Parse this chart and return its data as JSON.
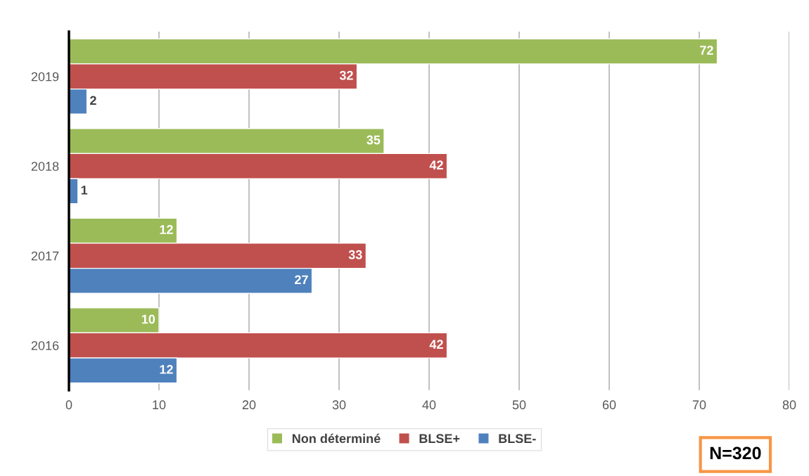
{
  "chart_data": {
    "type": "bar",
    "orientation": "horizontal",
    "categories": [
      "2019",
      "2018",
      "2017",
      "2016"
    ],
    "series": [
      {
        "name": "Non déterminé",
        "color": "#9bbb59",
        "values": [
          72,
          35,
          12,
          10
        ]
      },
      {
        "name": "BLSE+",
        "color": "#c0504d",
        "values": [
          32,
          42,
          33,
          42
        ]
      },
      {
        "name": "BLSE-",
        "color": "#4f81bd",
        "values": [
          2,
          1,
          27,
          12
        ]
      }
    ],
    "xlim": [
      0,
      80
    ],
    "xticks": [
      0,
      10,
      20,
      30,
      40,
      50,
      60,
      70,
      80
    ],
    "grid": "x",
    "legend": "bottom",
    "data_labels": true,
    "annotations": [
      "N=320"
    ]
  }
}
